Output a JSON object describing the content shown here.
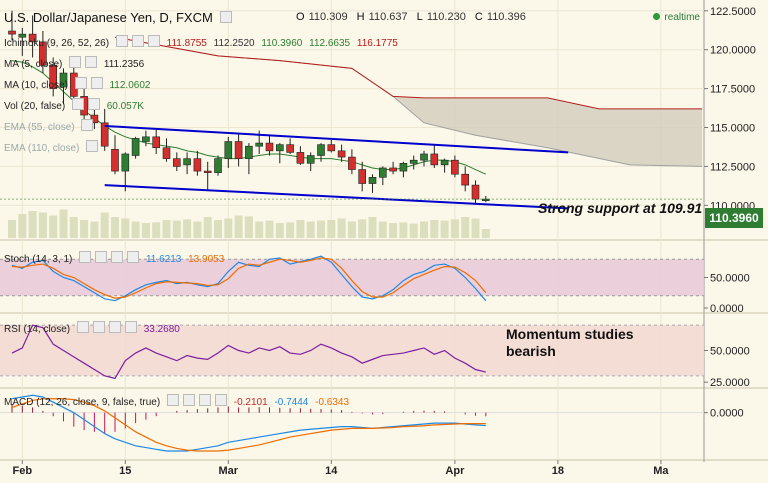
{
  "header": {
    "title": "U.S. Dollar/Japanese Yen, D, FXCM",
    "open_label": "O",
    "open": "110.309",
    "high_label": "H",
    "high": "110.637",
    "low_label": "L",
    "low": "110.230",
    "close_label": "C",
    "close": "110.396",
    "realtime": "realtime"
  },
  "legends": {
    "ichimoku": {
      "label": "Ichimoku (9, 26, 52, 26)",
      "values": [
        "111.8755",
        "112.2520",
        "110.3960",
        "112.6635",
        "116.1775"
      ]
    },
    "ma5": {
      "label": "MA (5, close)",
      "value": "111.2356"
    },
    "ma10": {
      "label": "MA (10, close)",
      "value": "112.0602"
    },
    "vol": {
      "label": "Vol (20, false)",
      "value": "60.057K"
    },
    "ema55": {
      "label": "EMA (55, close)"
    },
    "ema110": {
      "label": "EMA (110, close)"
    },
    "stoch": {
      "label": "Stoch (14, 3, 1)",
      "k": "11.6213",
      "d": "13.9053"
    },
    "rsi": {
      "label": "RSI (14, close)",
      "value": "33.2680"
    },
    "macd": {
      "label": "MACD (12, 26, close, 9, false, true)",
      "hist": "-0.2101",
      "macd": "-0.7444",
      "signal": "-0.6343"
    }
  },
  "annotations": {
    "support": "Strong support at 109.91",
    "momentum_line1": "Momentum studies",
    "momentum_line2": "bearish"
  },
  "current_price": "110.3960",
  "colors": {
    "background": "#fbf7e9",
    "up": "#2e7d32",
    "down": "#d32f2f",
    "channel": "#0000cc",
    "cloud": "#d4cfbe",
    "senkou_a": "#a0a0a0",
    "senkou_b": "#b71c1c",
    "kijun": "#2e7d32",
    "stoch_k": "#1e88e5",
    "stoch_d": "#ef6c00",
    "rsi": "#7b1fa2",
    "macd_line": "#1e88e5",
    "signal_line": "#ef6c00"
  },
  "chart_data": [
    {
      "type": "candlestick",
      "title": "U.S. Dollar/Japanese Yen, D, FXCM",
      "ylim": [
        107.9,
        123.0
      ],
      "yticks": [
        122.5,
        120.0,
        117.5,
        115.0,
        112.5,
        110.0
      ],
      "ytick_labels": [
        "122.5000",
        "120.0000",
        "117.5000",
        "115.0000",
        "112.5000",
        "110.0000"
      ],
      "xticks": [
        {
          "label": "Feb",
          "i": 1
        },
        {
          "label": "15",
          "i": 11
        },
        {
          "label": "Mar",
          "i": 21
        },
        {
          "label": "14",
          "i": 31
        },
        {
          "label": "Apr",
          "i": 43
        },
        {
          "label": "18",
          "i": 53
        },
        {
          "label": "Ma",
          "i": 63
        }
      ],
      "candles": [
        {
          "o": 121.2,
          "h": 122.5,
          "l": 120.6,
          "c": 121.0
        },
        {
          "o": 120.8,
          "h": 121.4,
          "l": 119.6,
          "c": 121.0
        },
        {
          "o": 121.0,
          "h": 122.2,
          "l": 119.5,
          "c": 120.5
        },
        {
          "o": 120.5,
          "h": 121.2,
          "l": 118.5,
          "c": 119.0
        },
        {
          "o": 119.0,
          "h": 119.5,
          "l": 117.0,
          "c": 117.5
        },
        {
          "o": 117.6,
          "h": 118.8,
          "l": 116.5,
          "c": 118.5
        },
        {
          "o": 118.5,
          "h": 118.9,
          "l": 116.7,
          "c": 117.0
        },
        {
          "o": 117.0,
          "h": 117.7,
          "l": 115.0,
          "c": 115.8
        },
        {
          "o": 115.8,
          "h": 116.5,
          "l": 114.9,
          "c": 115.3
        },
        {
          "o": 115.3,
          "h": 116.2,
          "l": 113.5,
          "c": 113.8
        },
        {
          "o": 113.6,
          "h": 114.5,
          "l": 112.0,
          "c": 112.2
        },
        {
          "o": 112.2,
          "h": 113.4,
          "l": 110.9,
          "c": 113.3
        },
        {
          "o": 113.2,
          "h": 114.4,
          "l": 113.0,
          "c": 114.3
        },
        {
          "o": 114.1,
          "h": 114.8,
          "l": 113.8,
          "c": 114.4
        },
        {
          "o": 114.4,
          "h": 114.9,
          "l": 113.3,
          "c": 113.7
        },
        {
          "o": 113.7,
          "h": 114.3,
          "l": 112.8,
          "c": 113.0
        },
        {
          "o": 113.0,
          "h": 113.4,
          "l": 112.2,
          "c": 112.5
        },
        {
          "o": 112.6,
          "h": 113.4,
          "l": 112.0,
          "c": 113.0
        },
        {
          "o": 113.0,
          "h": 113.5,
          "l": 111.9,
          "c": 112.2
        },
        {
          "o": 112.2,
          "h": 112.8,
          "l": 111.0,
          "c": 112.1
        },
        {
          "o": 112.1,
          "h": 113.2,
          "l": 111.9,
          "c": 113.0
        },
        {
          "o": 113.0,
          "h": 114.4,
          "l": 112.4,
          "c": 114.1
        },
        {
          "o": 114.1,
          "h": 114.6,
          "l": 112.5,
          "c": 113.0
        },
        {
          "o": 113.0,
          "h": 114.0,
          "l": 112.0,
          "c": 113.8
        },
        {
          "o": 113.8,
          "h": 114.8,
          "l": 113.3,
          "c": 114.0
        },
        {
          "o": 114.0,
          "h": 114.5,
          "l": 113.2,
          "c": 113.5
        },
        {
          "o": 113.5,
          "h": 114.0,
          "l": 112.7,
          "c": 113.9
        },
        {
          "o": 113.9,
          "h": 114.3,
          "l": 113.3,
          "c": 113.4
        },
        {
          "o": 113.4,
          "h": 113.8,
          "l": 112.6,
          "c": 112.7
        },
        {
          "o": 112.7,
          "h": 113.4,
          "l": 112.2,
          "c": 113.2
        },
        {
          "o": 113.2,
          "h": 114.0,
          "l": 112.8,
          "c": 113.9
        },
        {
          "o": 113.9,
          "h": 114.2,
          "l": 113.4,
          "c": 113.5
        },
        {
          "o": 113.5,
          "h": 113.9,
          "l": 112.8,
          "c": 113.1
        },
        {
          "o": 113.1,
          "h": 113.6,
          "l": 112.0,
          "c": 112.3
        },
        {
          "o": 112.3,
          "h": 112.8,
          "l": 110.9,
          "c": 111.4
        },
        {
          "o": 111.4,
          "h": 112.0,
          "l": 110.8,
          "c": 111.8
        },
        {
          "o": 111.8,
          "h": 112.5,
          "l": 111.3,
          "c": 112.4
        },
        {
          "o": 112.4,
          "h": 112.8,
          "l": 112.0,
          "c": 112.2
        },
        {
          "o": 112.2,
          "h": 112.8,
          "l": 111.8,
          "c": 112.7
        },
        {
          "o": 112.7,
          "h": 113.2,
          "l": 112.3,
          "c": 112.9
        },
        {
          "o": 112.9,
          "h": 113.5,
          "l": 112.5,
          "c": 113.3
        },
        {
          "o": 113.3,
          "h": 113.9,
          "l": 112.4,
          "c": 112.6
        },
        {
          "o": 112.6,
          "h": 113.0,
          "l": 112.1,
          "c": 112.9
        },
        {
          "o": 112.9,
          "h": 113.2,
          "l": 111.8,
          "c": 112.0
        },
        {
          "o": 112.0,
          "h": 112.5,
          "l": 110.9,
          "c": 111.3
        },
        {
          "o": 111.3,
          "h": 111.6,
          "l": 110.1,
          "c": 110.4
        },
        {
          "o": 110.3,
          "h": 110.6,
          "l": 110.2,
          "c": 110.4
        }
      ],
      "channel_upper": {
        "x": [
          9,
          54
        ],
        "y": [
          115.1,
          113.4
        ]
      },
      "channel_lower": {
        "x": [
          9,
          54
        ],
        "y": [
          111.3,
          109.8
        ]
      },
      "kijun": [
        119.3,
        119.2,
        118.9,
        118.5,
        117.9,
        117.3,
        116.7,
        116.1,
        115.6,
        115.1,
        114.7,
        114.4,
        114.2,
        114.0,
        113.9,
        113.8,
        113.7,
        113.5,
        113.4,
        113.2,
        113.1,
        113.0,
        113.0,
        113.1,
        113.2,
        113.3,
        113.3,
        113.2,
        113.1,
        113.0,
        113.0,
        113.0,
        112.9,
        112.8,
        112.6,
        112.4,
        112.3,
        112.3,
        112.4,
        112.6,
        112.8,
        112.9,
        112.9,
        112.8,
        112.6,
        112.3,
        112.0
      ],
      "cloud_a": [
        {
          "x": 10,
          "y": 120.8
        },
        {
          "x": 20,
          "y": 119.6
        },
        {
          "x": 26,
          "y": 119.3
        },
        {
          "x": 33,
          "y": 118.8
        },
        {
          "x": 37,
          "y": 117.0
        },
        {
          "x": 40,
          "y": 115.3
        },
        {
          "x": 45,
          "y": 114.5
        },
        {
          "x": 52,
          "y": 113.7
        },
        {
          "x": 60,
          "y": 112.6
        },
        {
          "x": 67,
          "y": 112.5
        }
      ],
      "cloud_b": [
        {
          "x": 10,
          "y": 120.8
        },
        {
          "x": 20,
          "y": 119.6
        },
        {
          "x": 26,
          "y": 119.3
        },
        {
          "x": 33,
          "y": 118.8
        },
        {
          "x": 37,
          "y": 117.0
        },
        {
          "x": 40,
          "y": 116.9
        },
        {
          "x": 52,
          "y": 116.9
        },
        {
          "x": 57,
          "y": 116.2
        },
        {
          "x": 67,
          "y": 116.2
        }
      ],
      "volume": [
        60,
        80,
        90,
        85,
        75,
        95,
        70,
        60,
        55,
        85,
        70,
        65,
        55,
        50,
        52,
        60,
        58,
        62,
        55,
        70,
        60,
        65,
        75,
        72,
        55,
        58,
        50,
        52,
        60,
        55,
        58,
        60,
        65,
        55,
        62,
        70,
        55,
        50,
        52,
        48,
        55,
        60,
        58,
        62,
        70,
        65,
        30
      ]
    },
    {
      "type": "line",
      "title": "Stoch (14, 3, 1)",
      "ylim": [
        0,
        100
      ],
      "yticks": [
        50,
        0
      ],
      "ytick_labels": [
        "50.0000",
        "0.0000"
      ],
      "overbought": 80,
      "oversold": 20,
      "series": [
        {
          "name": "11.6213",
          "values": [
            70,
            65,
            75,
            78,
            60,
            50,
            45,
            35,
            25,
            15,
            12,
            20,
            30,
            38,
            42,
            45,
            40,
            42,
            38,
            35,
            40,
            60,
            75,
            70,
            68,
            80,
            82,
            72,
            76,
            80,
            85,
            75,
            55,
            35,
            18,
            15,
            20,
            30,
            45,
            55,
            60,
            70,
            72,
            65,
            50,
            32,
            12
          ]
        },
        {
          "name": "13.9053",
          "values": [
            68,
            67,
            70,
            72,
            65,
            55,
            50,
            40,
            30,
            22,
            16,
            18,
            25,
            33,
            40,
            43,
            42,
            41,
            40,
            37,
            38,
            48,
            65,
            72,
            70,
            75,
            80,
            78,
            75,
            78,
            82,
            80,
            65,
            45,
            27,
            18,
            18,
            25,
            37,
            48,
            55,
            62,
            68,
            67,
            58,
            45,
            25
          ]
        }
      ]
    },
    {
      "type": "line",
      "title": "RSI (14, close)",
      "ylim": [
        22,
        78
      ],
      "yticks": [
        50,
        25
      ],
      "ytick_labels": [
        "50.0000",
        "25.0000"
      ],
      "series": [
        {
          "name": "33.2680",
          "values": [
            48,
            52,
            70,
            68,
            55,
            50,
            45,
            40,
            35,
            30,
            28,
            42,
            48,
            52,
            48,
            45,
            42,
            46,
            44,
            43,
            48,
            54,
            50,
            48,
            52,
            50,
            53,
            48,
            47,
            50,
            55,
            52,
            48,
            45,
            40,
            43,
            46,
            47,
            48,
            50,
            52,
            47,
            50,
            44,
            40,
            35,
            33
          ]
        }
      ]
    },
    {
      "type": "bar",
      "title": "MACD (12, 26, close, 9, false, true)",
      "ylim": [
        -2.6,
        1.3
      ],
      "yticks": [
        0
      ],
      "ytick_labels": [
        "0.0000"
      ],
      "histogram": [
        0.5,
        0.4,
        0.3,
        0.1,
        -0.2,
        -0.5,
        -0.8,
        -1.0,
        -1.1,
        -1.2,
        -1.1,
        -0.9,
        -0.6,
        -0.4,
        -0.2,
        0,
        0.1,
        0.15,
        0.2,
        0.25,
        0.3,
        0.35,
        0.3,
        0.3,
        0.32,
        0.3,
        0.28,
        0.25,
        0.25,
        0.22,
        0.2,
        0.18,
        0.15,
        0.05,
        -0.05,
        -0.1,
        -0.08,
        0,
        0.05,
        0.1,
        0.12,
        0.1,
        0.08,
        0,
        -0.1,
        -0.18,
        -0.21
      ],
      "series": [
        {
          "name": "-0.7444",
          "values": [
            0.8,
            0.9,
            1.0,
            0.9,
            0.6,
            0.3,
            0,
            -0.4,
            -0.8,
            -1.2,
            -1.5,
            -1.7,
            -1.9,
            -2.0,
            -2.1,
            -2.2,
            -2.2,
            -2.2,
            -2.1,
            -2.0,
            -1.9,
            -1.7,
            -1.6,
            -1.5,
            -1.4,
            -1.3,
            -1.2,
            -1.1,
            -1.0,
            -0.95,
            -0.9,
            -0.85,
            -0.8,
            -0.8,
            -0.85,
            -0.9,
            -0.85,
            -0.8,
            -0.75,
            -0.7,
            -0.65,
            -0.6,
            -0.6,
            -0.6,
            -0.65,
            -0.7,
            -0.74
          ]
        },
        {
          "name": "-0.6343",
          "values": [
            0.3,
            0.5,
            0.7,
            0.8,
            0.8,
            0.8,
            0.75,
            0.6,
            0.4,
            0.1,
            -0.3,
            -0.7,
            -1.1,
            -1.4,
            -1.7,
            -1.9,
            -2.05,
            -2.15,
            -2.2,
            -2.2,
            -2.2,
            -2.15,
            -2.05,
            -1.95,
            -1.85,
            -1.7,
            -1.55,
            -1.4,
            -1.3,
            -1.2,
            -1.1,
            -1.0,
            -0.95,
            -0.9,
            -0.9,
            -0.9,
            -0.88,
            -0.85,
            -0.8,
            -0.78,
            -0.75,
            -0.7,
            -0.68,
            -0.65,
            -0.63,
            -0.63,
            -0.63
          ]
        }
      ]
    }
  ]
}
